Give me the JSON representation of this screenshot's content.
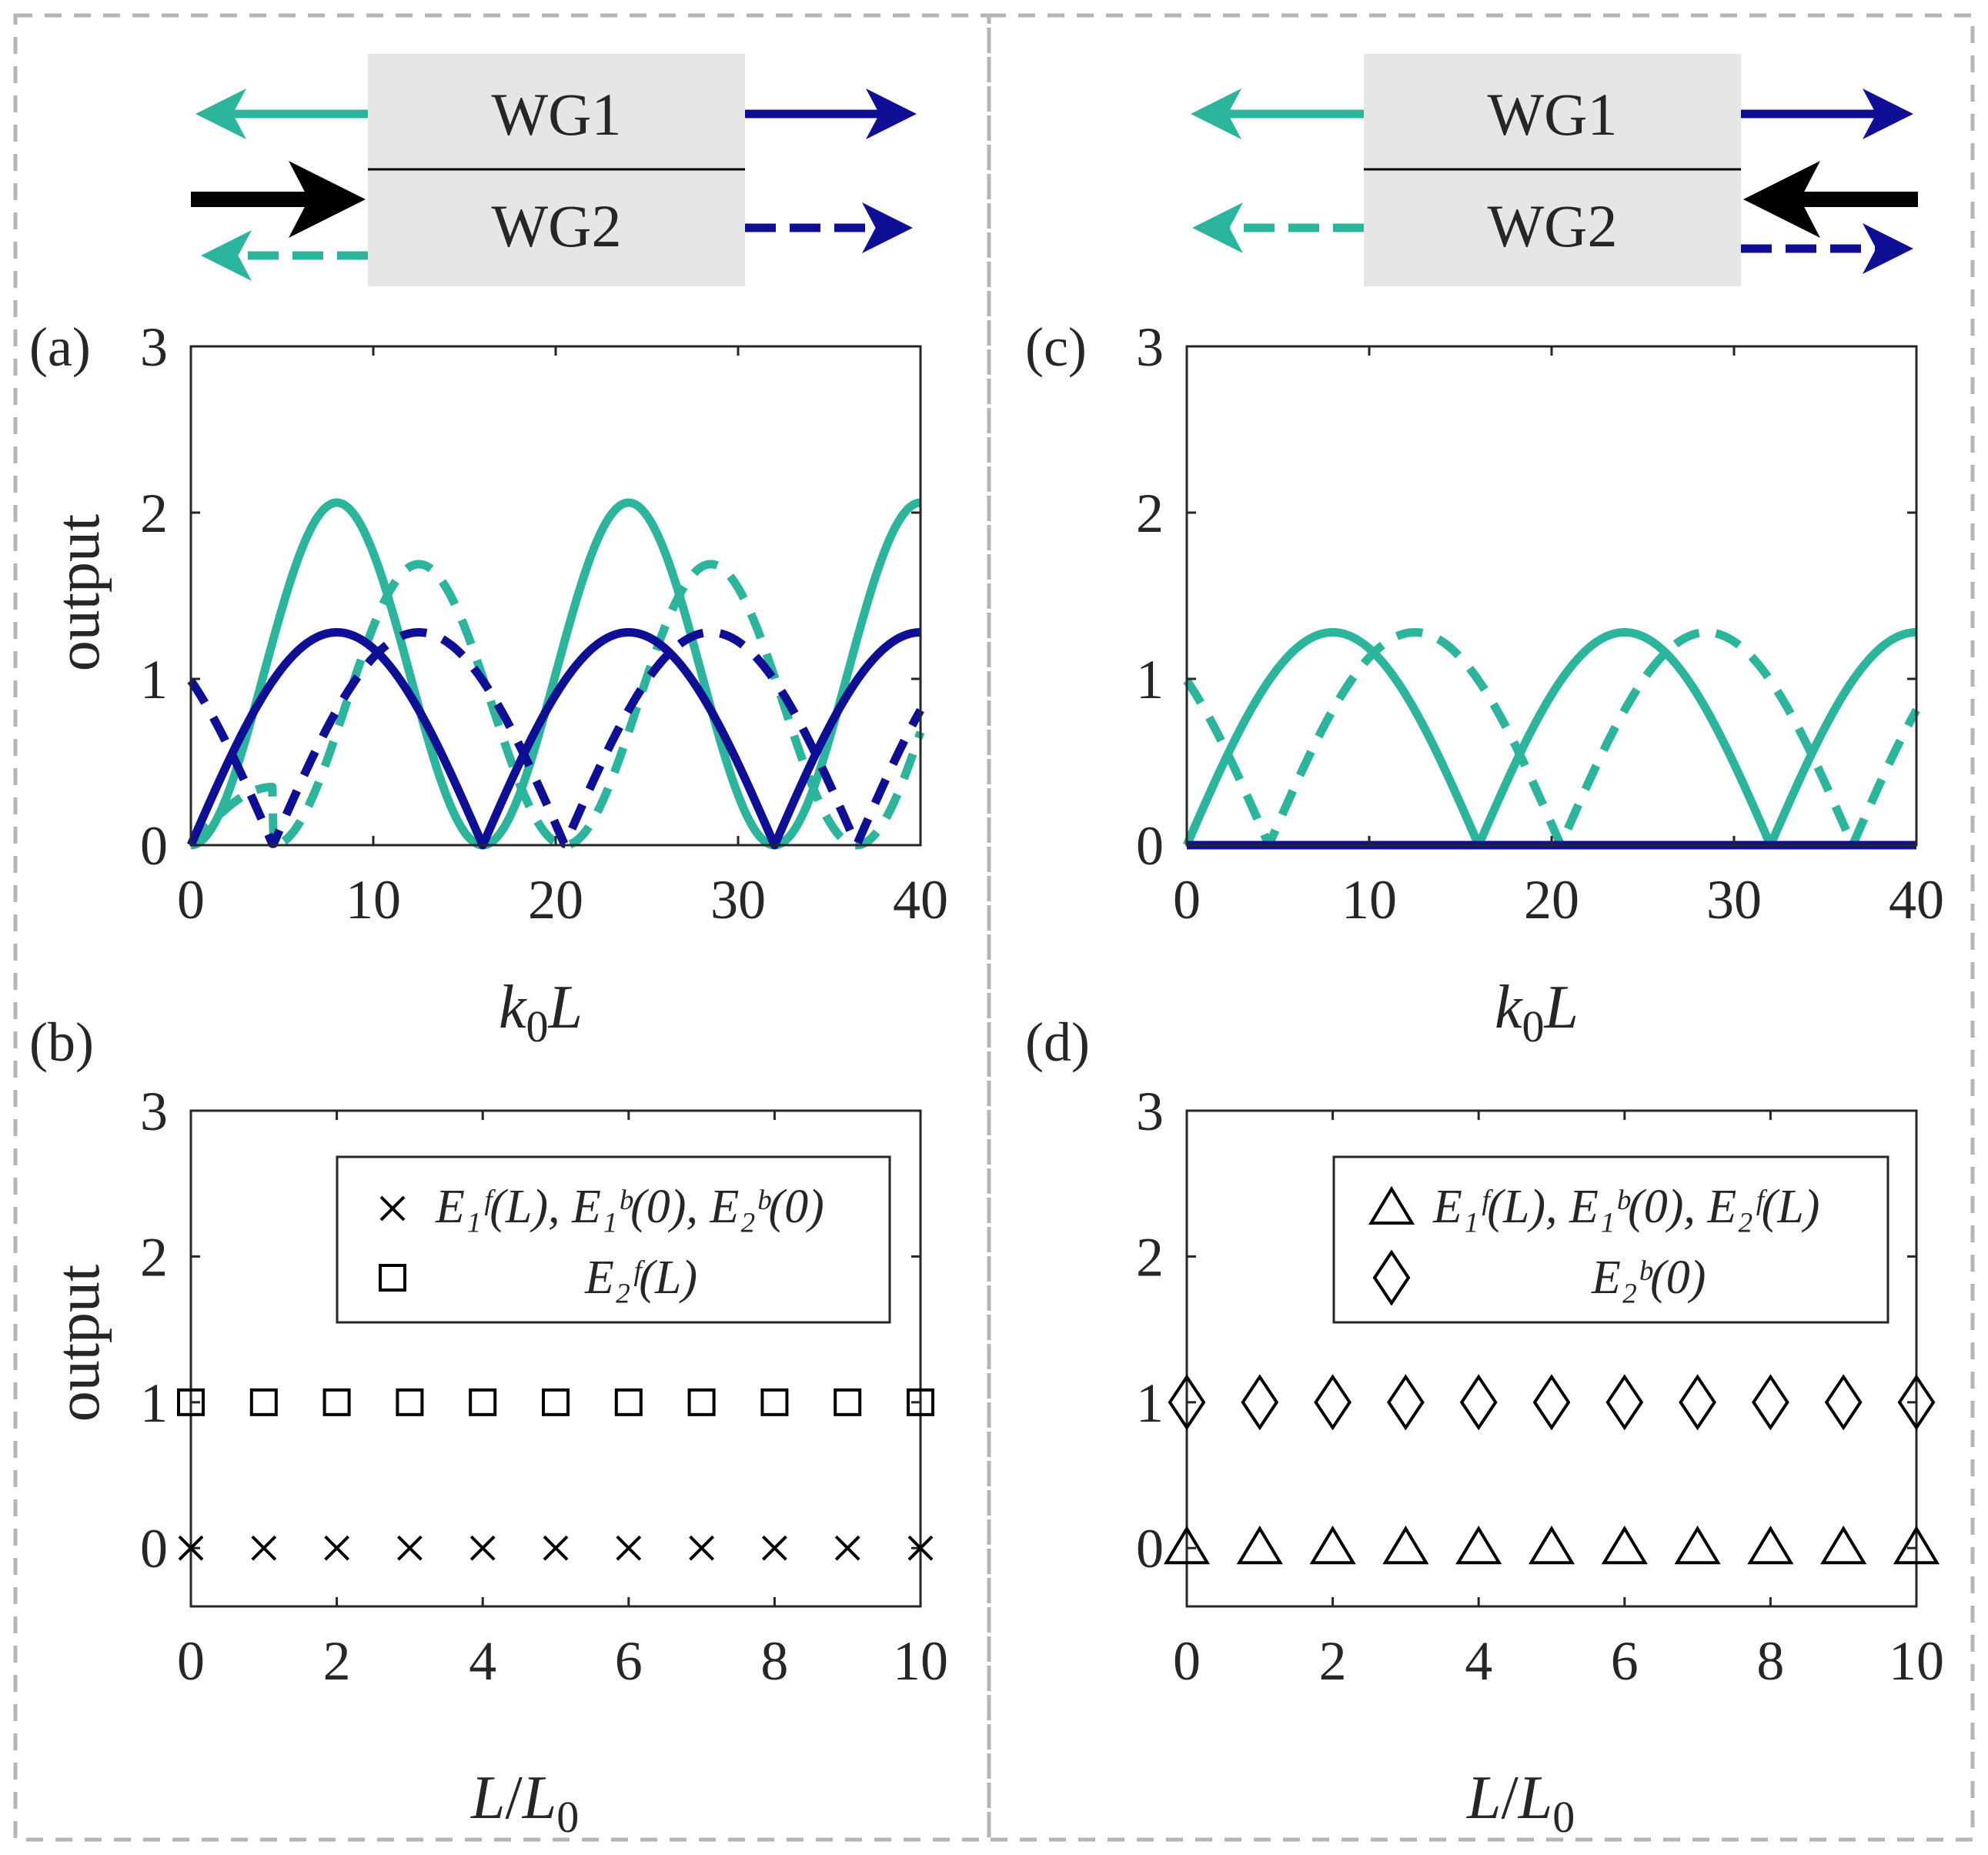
{
  "colors": {
    "teal": "#2bb59c",
    "navy": "#0f0f96",
    "black": "#000000",
    "box": "#e6e6e6",
    "axis": "#262626",
    "frame": "#b5b5b5"
  },
  "panels": {
    "a": {
      "label": "(a)"
    },
    "b": {
      "label": "(b)"
    },
    "c": {
      "label": "(c)"
    },
    "d": {
      "label": "(d)"
    }
  },
  "schematic": {
    "wg1": "WG1",
    "wg2": "WG2"
  },
  "axis_labels": {
    "ylabel": "output",
    "top_x_k": "k",
    "top_x_sub": "0",
    "top_x_L": "L",
    "bot_x_L": "L",
    "bot_x_slash": "/",
    "bot_x_L0": "L",
    "bot_x_sub": "0"
  },
  "legends": {
    "b": [
      {
        "marker": "×",
        "text": "E₁ᶠ(L), E₁ᵇ(0), E₂ᵇ(0)"
      },
      {
        "marker": "□",
        "text": "E₂ᶠ(L)"
      }
    ],
    "d": [
      {
        "marker": "△",
        "text": "E₁ᶠ(L), E₁ᵇ(0), E₂ᶠ(L)"
      },
      {
        "marker": "◇",
        "text": "E₂ᵇ(0)"
      }
    ]
  },
  "chart_data": [
    {
      "panel": "a",
      "type": "line",
      "xlabel": "k0L",
      "ylabel": "output",
      "xlim": [
        0,
        40
      ],
      "ylim": [
        0,
        3
      ],
      "xticks": [
        0,
        10,
        20,
        30,
        40
      ],
      "yticks": [
        0,
        1,
        2,
        3
      ],
      "series": [
        {
          "name": "teal-solid",
          "color": "teal",
          "dash": false,
          "kind": "sin2",
          "amp": 2.06,
          "period": 16,
          "phase": 0
        },
        {
          "name": "teal-dashed",
          "color": "teal",
          "dash": true,
          "kind": "sin2",
          "amp": 1.69,
          "period": 16,
          "phase": 0,
          "segments": [
            [
              0,
              1,
              0.03
            ],
            [
              1,
              4.5,
              0.35
            ],
            [
              4.5,
              20.5,
              0
            ],
            [
              20.5,
              36.5,
              0
            ],
            [
              36.5,
              40,
              0
            ]
          ]
        },
        {
          "name": "navy-solid",
          "color": "navy",
          "dash": false,
          "kind": "abssin",
          "amp": 1.28,
          "period": 16,
          "phase": 0
        },
        {
          "name": "navy-dashed",
          "color": "navy",
          "dash": true,
          "kind": "abssin",
          "amp": 1.28,
          "period": 16,
          "phase": -4.5,
          "start": 1.0
        }
      ]
    },
    {
      "panel": "b",
      "type": "scatter",
      "xlabel": "L/L0",
      "ylabel": "output",
      "xlim": [
        0,
        10
      ],
      "ylim": [
        -0.4,
        3
      ],
      "xticks": [
        0,
        2,
        4,
        6,
        8,
        10
      ],
      "yticks": [
        0,
        1,
        2,
        3
      ],
      "series": [
        {
          "name": "E1f(L), E1b(0), E2b(0)",
          "marker": "x",
          "x": [
            0,
            1,
            2,
            3,
            4,
            5,
            6,
            7,
            8,
            9,
            10
          ],
          "y": [
            0,
            0,
            0,
            0,
            0,
            0,
            0,
            0,
            0,
            0,
            0
          ]
        },
        {
          "name": "E2f(L)",
          "marker": "square",
          "x": [
            0,
            1,
            2,
            3,
            4,
            5,
            6,
            7,
            8,
            9,
            10
          ],
          "y": [
            1,
            1,
            1,
            1,
            1,
            1,
            1,
            1,
            1,
            1,
            1
          ]
        }
      ],
      "legend": "top-right"
    },
    {
      "panel": "c",
      "type": "line",
      "xlabel": "k0L",
      "ylabel": "",
      "xlim": [
        0,
        40
      ],
      "ylim": [
        0,
        3
      ],
      "xticks": [
        0,
        10,
        20,
        30,
        40
      ],
      "yticks": [
        0,
        1,
        2,
        3
      ],
      "series": [
        {
          "name": "teal-solid",
          "color": "teal",
          "dash": false,
          "kind": "abssin",
          "amp": 1.28,
          "period": 16,
          "phase": 0
        },
        {
          "name": "teal-dashed",
          "color": "teal",
          "dash": true,
          "kind": "abssin",
          "amp": 1.28,
          "period": 16,
          "phase": -4.5
        },
        {
          "name": "navy-solid",
          "color": "navy",
          "dash": false,
          "kind": "zero",
          "amp": 0,
          "period": 16,
          "phase": 0
        }
      ]
    },
    {
      "panel": "d",
      "type": "scatter",
      "xlabel": "L/L0",
      "ylabel": "",
      "xlim": [
        0,
        10
      ],
      "ylim": [
        -0.4,
        3
      ],
      "xticks": [
        0,
        2,
        4,
        6,
        8,
        10
      ],
      "yticks": [
        0,
        1,
        2,
        3
      ],
      "series": [
        {
          "name": "E1f(L), E1b(0), E2f(L)",
          "marker": "triangle",
          "x": [
            0,
            1,
            2,
            3,
            4,
            5,
            6,
            7,
            8,
            9,
            10
          ],
          "y": [
            0,
            0,
            0,
            0,
            0,
            0,
            0,
            0,
            0,
            0,
            0
          ]
        },
        {
          "name": "E2b(0)",
          "marker": "diamond",
          "x": [
            0,
            1,
            2,
            3,
            4,
            5,
            6,
            7,
            8,
            9,
            10
          ],
          "y": [
            1,
            1,
            1,
            1,
            1,
            1,
            1,
            1,
            1,
            1,
            1
          ]
        }
      ],
      "legend": "top-right"
    }
  ]
}
